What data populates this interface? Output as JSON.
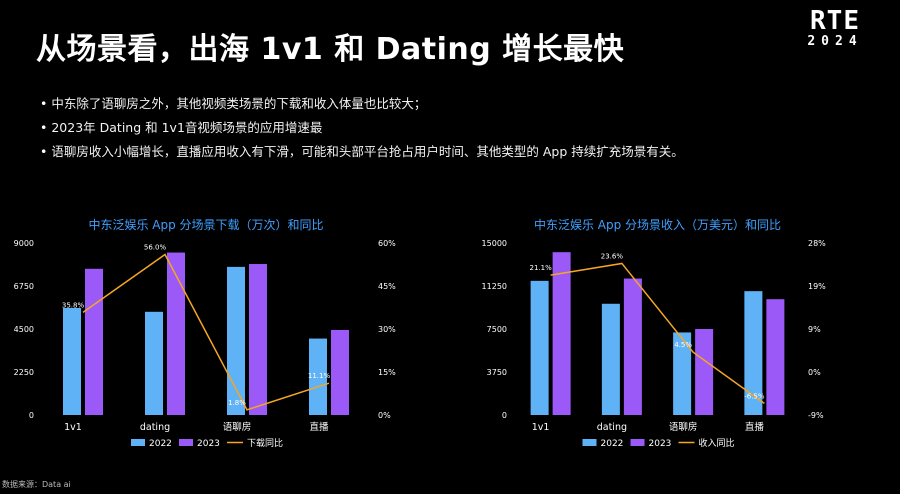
{
  "logo": {
    "line1": "RTE",
    "line2": "2024"
  },
  "title": "从场景看，出海 1v1 和 Dating 增长最快",
  "bullets": [
    "中东除了语聊房之外，其他视频类场景的下载和收入体量也比较大；",
    "2023年 Dating 和 1v1音视频场景的应用增速最",
    "语聊房收入小幅增长，直播应用收入有下滑，可能和头部平台抢占用户时间、其他类型的 App 持续扩充场景有关。"
  ],
  "source": "数据来源：Data ai",
  "colors": {
    "bar2022": "#5fb2f5",
    "bar2023": "#9b59f7",
    "line": "#f5a623",
    "title": "#3ea0ff"
  },
  "chart_data": [
    {
      "type": "bar",
      "title": "中东泛娱乐 App 分场景下载（万次）和同比",
      "categories": [
        "1v1",
        "dating",
        "语聊房",
        "直播"
      ],
      "series": [
        {
          "name": "2022",
          "values": [
            5600,
            5400,
            7750,
            4000
          ]
        },
        {
          "name": "2023",
          "values": [
            7650,
            8500,
            7900,
            4450
          ]
        }
      ],
      "line_series": {
        "name": "下载同比",
        "values": [
          35.8,
          56.0,
          1.8,
          11.1
        ],
        "labels": [
          "35.8%",
          "56.0%",
          "1.8%",
          "11.1%"
        ]
      },
      "ylim": [
        0,
        9000
      ],
      "yticks": [
        "0",
        "2250",
        "4500",
        "6750",
        "9000"
      ],
      "y2lim": [
        0,
        60
      ],
      "y2ticks": [
        "0%",
        "15%",
        "30%",
        "45%",
        "60%"
      ],
      "legend_position": "bottom"
    },
    {
      "type": "bar",
      "title": "中东泛娱乐 App 分场景收入（万美元）和同比",
      "categories": [
        "1v1",
        "dating",
        "语聊房",
        "直播"
      ],
      "series": [
        {
          "name": "2022",
          "values": [
            11700,
            9700,
            7200,
            10800
          ]
        },
        {
          "name": "2023",
          "values": [
            14200,
            11900,
            7500,
            10100
          ]
        }
      ],
      "line_series": {
        "name": "收入同比",
        "values": [
          21.1,
          23.6,
          4.5,
          -6.5
        ],
        "labels": [
          "21.1%",
          "23.6%",
          "4.5%",
          "-6.5%"
        ]
      },
      "ylim": [
        0,
        15000
      ],
      "yticks": [
        "0",
        "3750",
        "7500",
        "11250",
        "15000"
      ],
      "y2lim": [
        -9,
        28
      ],
      "y2ticks": [
        "-9%",
        "0%",
        "9%",
        "19%",
        "28%"
      ],
      "legend_position": "bottom"
    }
  ]
}
